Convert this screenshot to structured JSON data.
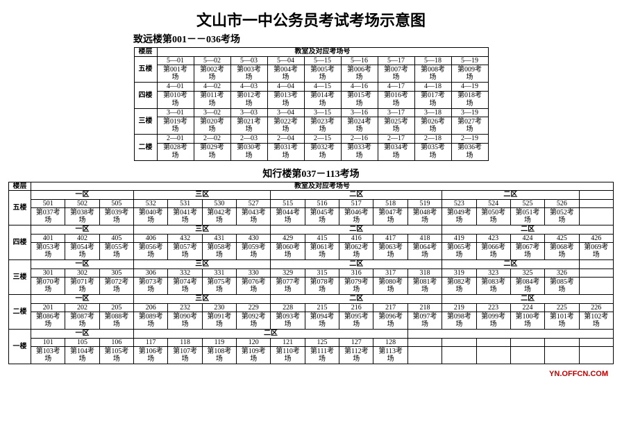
{
  "title": "文山市一中公务员考试考场示意图",
  "building1": {
    "name": "致远楼第001－－036考场",
    "floor_header": "楼层",
    "rooms_header": "教室及对应考场号",
    "floors": [
      {
        "label": "五楼",
        "codes": [
          "5—01",
          "5—02",
          "5—03",
          "5—04",
          "5—15",
          "5—16",
          "5—17",
          "5—18",
          "5—19"
        ],
        "rooms": [
          "第001考场",
          "第002考场",
          "第003考场",
          "第004考场",
          "第005考场",
          "第006考场",
          "第007考场",
          "第008考场",
          "第009考场"
        ]
      },
      {
        "label": "四楼",
        "codes": [
          "4—01",
          "4—02",
          "4—03",
          "4—04",
          "4—15",
          "4—16",
          "4—17",
          "4—18",
          "4—19"
        ],
        "rooms": [
          "第010考场",
          "第011考场",
          "第012考场",
          "第013考场",
          "第014考场",
          "第015考场",
          "第016考场",
          "第017考场",
          "第018考场"
        ]
      },
      {
        "label": "三楼",
        "codes": [
          "3—01",
          "3—02",
          "3—03",
          "3—04",
          "3—15",
          "3—16",
          "3—17",
          "3—18",
          "3—19"
        ],
        "rooms": [
          "第019考场",
          "第020考场",
          "第021考场",
          "第022考场",
          "第023考场",
          "第024考场",
          "第025考场",
          "第026考场",
          "第027考场"
        ]
      },
      {
        "label": "二楼",
        "codes": [
          "2—01",
          "2—02",
          "2—03",
          "2—04",
          "2—15",
          "2—16",
          "2—17",
          "2—18",
          "2—19"
        ],
        "rooms": [
          "第028考场",
          "第029考场",
          "第030考场",
          "第031考场",
          "第032考场",
          "第033考场",
          "第034考场",
          "第035考场",
          "第036考场"
        ]
      }
    ]
  },
  "building2": {
    "name": "知行楼第037－113考场",
    "floor_header": "楼层",
    "rooms_header": "教室及对应考场号",
    "zone1": "一区",
    "zone2": "二区",
    "zone3": "三区",
    "floors": [
      {
        "label": "五楼",
        "zones": [
          {
            "z": "一区",
            "span": 3
          },
          {
            "z": "三区",
            "span": 4
          },
          {
            "z": "二区",
            "span": 5
          },
          {
            "z": "二区",
            "span": 4
          }
        ],
        "codes": [
          "501",
          "502",
          "505",
          "532",
          "531",
          "530",
          "527",
          "515",
          "516",
          "517",
          "518",
          "519",
          "523",
          "524",
          "525",
          "526"
        ],
        "rooms": [
          "第037考场",
          "第038考场",
          "第039考场",
          "第040考场",
          "第041考场",
          "第042考场",
          "第043考场",
          "第044考场",
          "第045考场",
          "第046考场",
          "第047考场",
          "第048考场",
          "第049考场",
          "第050考场",
          "第051考场",
          "第052考场"
        ]
      },
      {
        "label": "四楼",
        "zones": [
          {
            "z": "一区",
            "span": 3
          },
          {
            "z": "三区",
            "span": 4
          },
          {
            "z": "二区",
            "span": 5
          },
          {
            "z": "二区",
            "span": 5
          }
        ],
        "codes": [
          "401",
          "402",
          "405",
          "406",
          "432",
          "431",
          "430",
          "429",
          "415",
          "416",
          "417",
          "418",
          "419",
          "423",
          "424",
          "425",
          "426"
        ],
        "rooms": [
          "第053考场",
          "第054考场",
          "第055考场",
          "第056考场",
          "第057考场",
          "第058考场",
          "第059考场",
          "第060考场",
          "第061考场",
          "第062考场",
          "第063考场",
          "第064考场",
          "第065考场",
          "第066考场",
          "第067考场",
          "第068考场",
          "第069考场"
        ]
      },
      {
        "label": "三楼",
        "zones": [
          {
            "z": "一区",
            "span": 3
          },
          {
            "z": "三区",
            "span": 4
          },
          {
            "z": "二区",
            "span": 5
          },
          {
            "z": "二区",
            "span": 4
          }
        ],
        "codes": [
          "301",
          "302",
          "305",
          "306",
          "332",
          "331",
          "330",
          "329",
          "315",
          "316",
          "317",
          "318",
          "319",
          "323",
          "325",
          "326"
        ],
        "rooms": [
          "第070考场",
          "第071考场",
          "第072考场",
          "第073考场",
          "第074考场",
          "第075考场",
          "第076考场",
          "第077考场",
          "第078考场",
          "第079考场",
          "第080考场",
          "第081考场",
          "第082考场",
          "第083考场",
          "第084考场",
          "第085考场"
        ]
      },
      {
        "label": "二楼",
        "zones": [
          {
            "z": "一区",
            "span": 3
          },
          {
            "z": "三区",
            "span": 4
          },
          {
            "z": "二区",
            "span": 5
          },
          {
            "z": "二区",
            "span": 5
          }
        ],
        "codes": [
          "201",
          "202",
          "205",
          "206",
          "232",
          "230",
          "229",
          "228",
          "215",
          "216",
          "217",
          "218",
          "219",
          "223",
          "224",
          "225",
          "226"
        ],
        "rooms": [
          "第086考场",
          "第087考场",
          "第088考场",
          "第089考场",
          "第090考场",
          "第091考场",
          "第092考场",
          "第093考场",
          "第094考场",
          "第095考场",
          "第096考场",
          "第097考场",
          "第098考场",
          "第099考场",
          "第100考场",
          "第101考场",
          "第102考场"
        ]
      },
      {
        "label": "一楼",
        "zones": [
          {
            "z": "一区",
            "span": 3
          },
          {
            "z": "二区",
            "span": 8
          },
          {
            "z": "",
            "span": 6
          }
        ],
        "codes": [
          "101",
          "105",
          "106",
          "117",
          "118",
          "119",
          "120",
          "121",
          "125",
          "127",
          "128",
          "",
          "",
          "",
          "",
          "",
          ""
        ],
        "rooms": [
          "第103考场",
          "第104考场",
          "第105考场",
          "第106考场",
          "第107考场",
          "第108考场",
          "第109考场",
          "第110考场",
          "第111考场",
          "第112考场",
          "第113考场",
          "",
          "",
          "",
          "",
          "",
          ""
        ]
      }
    ]
  },
  "footer": "YN.OFFCN.COM"
}
